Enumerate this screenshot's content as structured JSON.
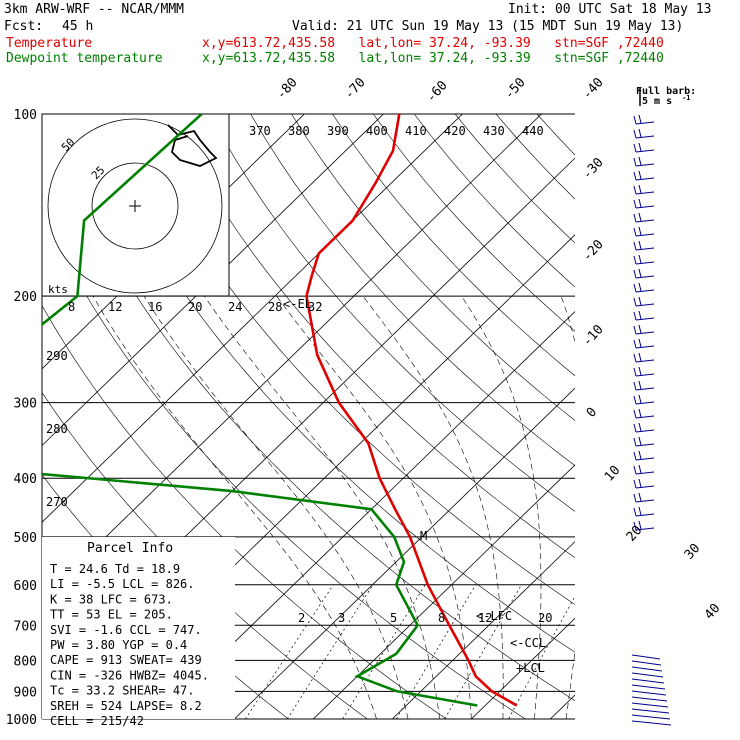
{
  "header": {
    "model": "3km ARW-WRF -- NCAR/MMM",
    "init": "Init: 00 UTC Sat 18 May 13",
    "fcst_label": "Fcst:",
    "fcst_value": "45 h",
    "valid": "Valid: 21 UTC Sun 19 May 13 (15 MDT Sun 19 May 13)",
    "temp_label": "Temperature",
    "dew_label": "Dewpoint temperature",
    "location": "x,y=613.72,435.58   lat,lon= 37.24, -93.39   stn=SGF ,72440",
    "colors": {
      "temperature": "#e00000",
      "dewpoint": "#008000",
      "text": "#000000"
    }
  },
  "hodograph": {
    "units": "kts",
    "ring_labels": [
      "25",
      "50"
    ],
    "theta_e_labels": [
      "370",
      "380",
      "390",
      "400",
      "410",
      "420",
      "430",
      "440"
    ],
    "mixing_ratio_top_labels": [
      "8",
      "12",
      "16",
      "20",
      "24",
      "28",
      "32"
    ]
  },
  "barbs": {
    "title": "Full barb:",
    "unit": "5 m s",
    "superscript": "-1"
  },
  "parcel": {
    "title": "Parcel Info",
    "rows": [
      [
        "T   =   24.6  Td =  18.9"
      ],
      [
        "LI  =   -5.5  LCL =  826."
      ],
      [
        "K   =     38  LFC =  673."
      ],
      [
        "TT  =     53  EL  =  205."
      ],
      [
        "SVI =   -1.6  CCL =  747."
      ],
      [
        "PW  =   3.80  YGP =   0.4"
      ],
      [
        "CAPE =   913  SWEAT=  439"
      ],
      [
        "CIN  =  -326  HWBZ= 4045."
      ],
      [
        "Tc  =   33.2  SHEAR=  47."
      ],
      [
        "SREH =   524  LAPSE=  8.2"
      ],
      [
        "CELL = 215/42"
      ]
    ]
  },
  "chart_data": {
    "type": "skew-t log-p",
    "y_axis": {
      "label": "pressure (hPa)",
      "scale": "log",
      "range": [
        1000,
        100
      ],
      "ticks": [
        100,
        200,
        300,
        400,
        500,
        600,
        700,
        800,
        900,
        1000
      ]
    },
    "isotherm_labels": [
      -80,
      -70,
      -60,
      -50,
      -40,
      -30,
      -20,
      -10,
      0,
      10,
      20,
      30,
      40
    ],
    "theta_labels": [
      "290",
      "280",
      "270"
    ],
    "mixing_ratio_labels": [
      "2",
      "3",
      "5",
      "8",
      "12",
      "20"
    ],
    "level_markers": [
      "<-EL",
      "<-LFC",
      "<-CCL",
      "+LCL",
      "M"
    ],
    "series": [
      {
        "name": "Temperature",
        "points": [
          {
            "p": 100,
            "t": -68
          },
          {
            "p": 115,
            "t": -64
          },
          {
            "p": 130,
            "t": -62
          },
          {
            "p": 150,
            "t": -60
          },
          {
            "p": 170,
            "t": -60
          },
          {
            "p": 185,
            "t": -58
          },
          {
            "p": 200,
            "t": -56
          },
          {
            "p": 250,
            "t": -47
          },
          {
            "p": 300,
            "t": -38
          },
          {
            "p": 350,
            "t": -29
          },
          {
            "p": 400,
            "t": -23
          },
          {
            "p": 450,
            "t": -17
          },
          {
            "p": 500,
            "t": -11.5
          },
          {
            "p": 600,
            "t": -3
          },
          {
            "p": 700,
            "t": 5
          },
          {
            "p": 800,
            "t": 12
          },
          {
            "p": 850,
            "t": 15
          },
          {
            "p": 900,
            "t": 19
          },
          {
            "p": 950,
            "t": 24
          }
        ]
      },
      {
        "name": "Dewpoint temperature",
        "points": [
          {
            "p": 100,
            "t": -93
          },
          {
            "p": 150,
            "t": -94
          },
          {
            "p": 200,
            "t": -85
          },
          {
            "p": 230,
            "t": -86
          },
          {
            "p": 250,
            "t": -84
          },
          {
            "p": 300,
            "t": -84
          },
          {
            "p": 350,
            "t": -86
          },
          {
            "p": 370,
            "t": -90
          },
          {
            "p": 390,
            "t": -70
          },
          {
            "p": 420,
            "t": -40
          },
          {
            "p": 450,
            "t": -20
          },
          {
            "p": 500,
            "t": -13.5
          },
          {
            "p": 550,
            "t": -9
          },
          {
            "p": 600,
            "t": -7
          },
          {
            "p": 700,
            "t": 1
          },
          {
            "p": 780,
            "t": 2
          },
          {
            "p": 850,
            "t": 0
          },
          {
            "p": 900,
            "t": 7
          },
          {
            "p": 950,
            "t": 19
          }
        ]
      }
    ]
  }
}
